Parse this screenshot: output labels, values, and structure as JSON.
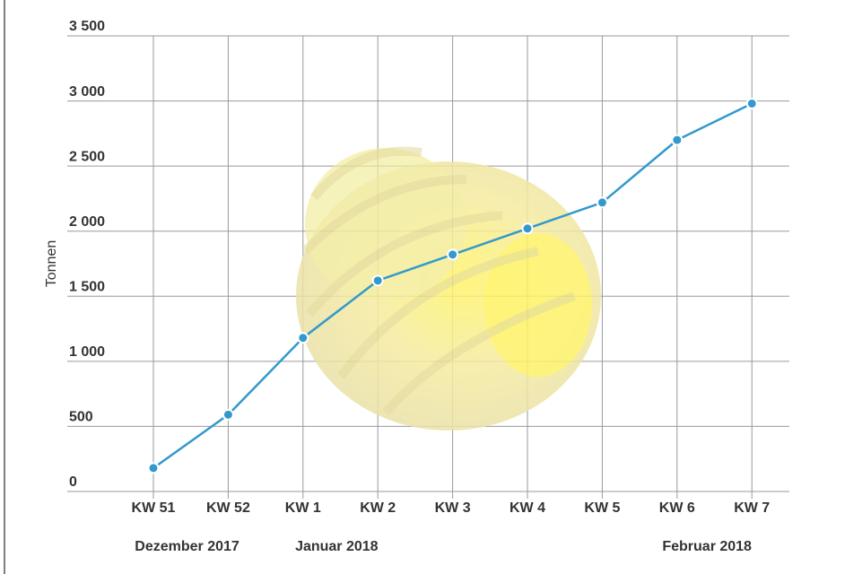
{
  "chart_data": {
    "type": "line",
    "y_label": "Tonnen",
    "categories": [
      "KW 51",
      "KW 52",
      "KW 1",
      "KW 2",
      "KW 3",
      "KW 4",
      "KW 5",
      "KW 6",
      "KW 7"
    ],
    "series": [
      {
        "name": "Tonnen",
        "color": "#3399cc",
        "values": [
          180,
          590,
          1180,
          1620,
          1820,
          2020,
          2220,
          2700,
          2980
        ]
      }
    ],
    "ylim": [
      0,
      3500
    ],
    "yticks": [
      0,
      500,
      {
        "value": 1000,
        "label": "1 000"
      },
      {
        "value": 1500,
        "label": "1 500"
      },
      {
        "value": 2000,
        "label": "2 000"
      },
      {
        "value": 2500,
        "label": "2 500"
      },
      {
        "value": 3000,
        "label": "3 000"
      },
      {
        "value": 3500,
        "label": "3 500"
      }
    ],
    "grid": true,
    "month_labels": [
      "Dezember 2017",
      "Januar 2018",
      "Februar 2018"
    ]
  }
}
